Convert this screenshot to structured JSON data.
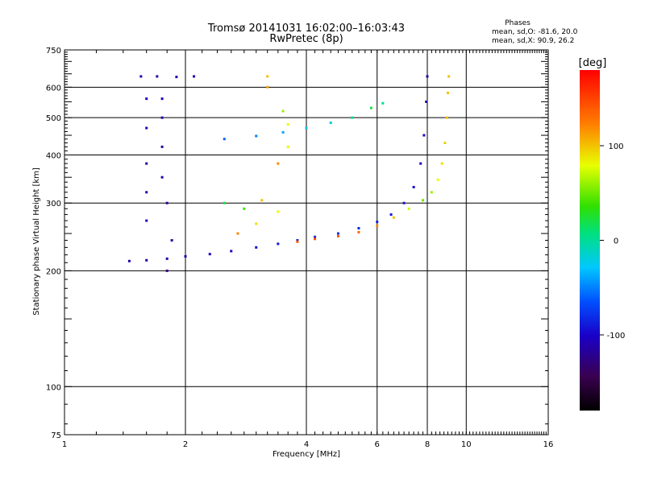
{
  "chart_data": {
    "type": "scatter",
    "title": "Tromsø 20141031 16:02:00–16:03:43",
    "subtitle": "RwPretec (8p)",
    "xlabel": "Frequency [MHz]",
    "ylabel": "Stationary phase Virtual Height [km]",
    "x_scale": "log2",
    "y_scale": "log",
    "xlim": [
      1,
      16
    ],
    "ylim": [
      75,
      750
    ],
    "x_ticks": [
      1,
      2,
      4,
      6,
      8,
      10,
      16
    ],
    "x_tick_labels": [
      "1",
      "2",
      "4",
      "6",
      "8",
      "10",
      "16"
    ],
    "x_gridlines": [
      2,
      4,
      6,
      8,
      10
    ],
    "y_ticks": [
      75,
      100,
      200,
      300,
      400,
      500,
      600,
      750
    ],
    "y_tick_labels": [
      "75",
      "100",
      "200",
      "300",
      "400",
      "500",
      "600",
      "750"
    ],
    "y_gridlines": [
      100,
      200,
      300,
      400,
      500,
      600
    ],
    "grid": true,
    "stats": {
      "heading": "Phases",
      "line_o": "mean, sd,O: -81.6, 20.0",
      "line_x": "mean, sd,X:  90.9, 26.2"
    },
    "colorbar": {
      "label": "[deg]",
      "range": [
        -180,
        180
      ],
      "ticks": [
        100,
        0,
        -100
      ],
      "tick_labels": [
        "100",
        "0",
        "-100"
      ]
    },
    "traces": [
      {
        "points": [
          [
            1.45,
            212,
            -110
          ],
          [
            1.6,
            213,
            -112
          ],
          [
            1.8,
            215,
            -110
          ],
          [
            2.0,
            218,
            -108
          ],
          [
            2.3,
            221,
            -104
          ],
          [
            2.6,
            225,
            -100
          ],
          [
            3.0,
            230,
            -95
          ],
          [
            3.4,
            235,
            -90
          ],
          [
            3.8,
            240,
            -85
          ],
          [
            4.2,
            245,
            -80
          ],
          [
            4.8,
            250,
            -80
          ],
          [
            5.4,
            258,
            -82
          ],
          [
            6.0,
            268,
            -85
          ],
          [
            6.5,
            280,
            -88
          ],
          [
            7.0,
            300,
            -92
          ],
          [
            7.4,
            330,
            -95
          ],
          [
            7.7,
            380,
            -100
          ],
          [
            7.85,
            450,
            -105
          ],
          [
            7.95,
            550,
            -110
          ],
          [
            8.0,
            640,
            -115
          ]
        ]
      },
      {
        "points": [
          [
            3.8,
            238,
            140
          ],
          [
            4.2,
            242,
            145
          ],
          [
            4.8,
            246,
            140
          ],
          [
            5.4,
            252,
            135
          ],
          [
            6.0,
            262,
            120
          ],
          [
            6.6,
            275,
            100
          ],
          [
            7.2,
            290,
            70
          ],
          [
            7.8,
            305,
            50
          ],
          [
            8.2,
            320,
            60
          ],
          [
            8.5,
            345,
            80
          ],
          [
            8.7,
            380,
            90
          ],
          [
            8.85,
            430,
            95
          ],
          [
            8.95,
            500,
            100
          ],
          [
            9.0,
            580,
            100
          ],
          [
            9.05,
            640,
            100
          ]
        ]
      },
      {
        "points": [
          [
            2.5,
            440,
            -60
          ],
          [
            3.0,
            448,
            -50
          ],
          [
            3.5,
            458,
            -40
          ],
          [
            4.0,
            470,
            -30
          ],
          [
            4.6,
            485,
            -20
          ],
          [
            5.2,
            500,
            0
          ],
          [
            5.8,
            530,
            20
          ],
          [
            6.2,
            545,
            0
          ]
        ]
      },
      {
        "points": [
          [
            1.55,
            640,
            -110
          ],
          [
            1.7,
            640,
            -112
          ],
          [
            1.9,
            638,
            -110
          ],
          [
            2.1,
            640,
            -108
          ],
          [
            1.75,
            560,
            -105
          ],
          [
            1.75,
            500,
            -110
          ],
          [
            1.75,
            420,
            -115
          ],
          [
            1.75,
            350,
            -110
          ],
          [
            1.8,
            300,
            -120
          ],
          [
            1.85,
            240,
            -120
          ],
          [
            1.8,
            200,
            -125
          ],
          [
            1.6,
            560,
            -100
          ],
          [
            1.6,
            470,
            -110
          ],
          [
            1.6,
            380,
            -115
          ],
          [
            1.6,
            320,
            -110
          ],
          [
            1.6,
            270,
            -105
          ]
        ]
      },
      {
        "points": [
          [
            2.5,
            300,
            20
          ],
          [
            2.8,
            290,
            40
          ],
          [
            3.1,
            305,
            100
          ],
          [
            3.4,
            285,
            80
          ],
          [
            2.7,
            250,
            120
          ],
          [
            3.0,
            265,
            90
          ],
          [
            3.2,
            640,
            100
          ],
          [
            3.2,
            600,
            110
          ],
          [
            3.5,
            520,
            60
          ],
          [
            3.6,
            480,
            80
          ],
          [
            3.6,
            420,
            80
          ],
          [
            3.4,
            380,
            120
          ]
        ]
      }
    ]
  }
}
